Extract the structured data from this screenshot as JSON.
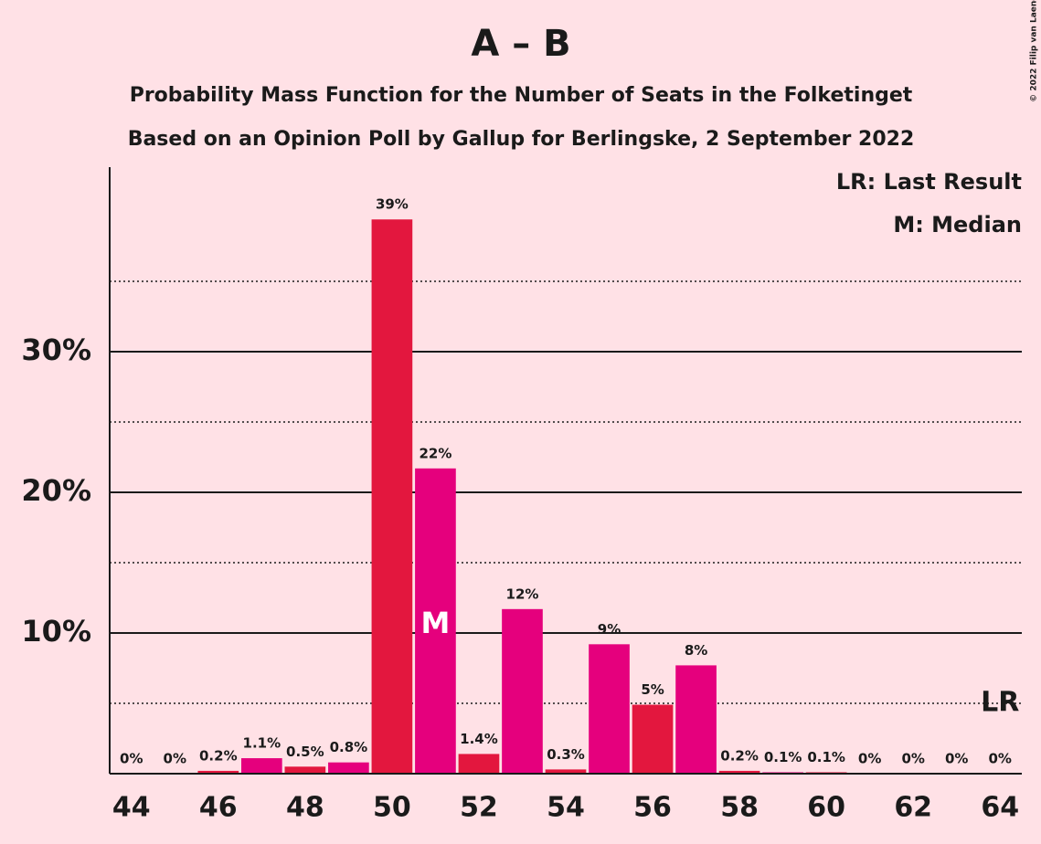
{
  "chart_data": {
    "type": "bar",
    "title": "A – B",
    "subtitle": "Probability Mass Function for the Number of Seats in the Folketinget",
    "subtitle2": "Based on an Opinion Poll by Gallup for Berlingske, 2 September 2022",
    "copyright": "© 2022 Filip van Laenen",
    "legend": [
      "LR: Last Result",
      "M: Median"
    ],
    "x": [
      44,
      45,
      46,
      47,
      48,
      49,
      50,
      51,
      52,
      53,
      54,
      55,
      56,
      57,
      58,
      59,
      60,
      61,
      62,
      63,
      64
    ],
    "values": [
      0,
      0,
      0.2,
      1.1,
      0.5,
      0.8,
      39.4,
      21.7,
      1.4,
      11.7,
      0.3,
      9.2,
      4.9,
      7.7,
      0.2,
      0.1,
      0.1,
      0,
      0,
      0,
      0
    ],
    "value_labels": [
      "0%",
      "0%",
      "0.2%",
      "1.1%",
      "0.5%",
      "0.8%",
      "39%",
      "22%",
      "1.4%",
      "12%",
      "0.3%",
      "9%",
      "5%",
      "8%",
      "0.2%",
      "0.1%",
      "0.1%",
      "0%",
      "0%",
      "0%",
      "0%"
    ],
    "colors": [
      "#e3173e",
      "#e5007d"
    ],
    "xlim": [
      43.5,
      64.5
    ],
    "xticks": [
      44,
      46,
      48,
      50,
      52,
      54,
      56,
      58,
      60,
      62,
      64
    ],
    "ylim": [
      0,
      43
    ],
    "yticks": [
      {
        "value": 10,
        "label": "10%"
      },
      {
        "value": 20,
        "label": "20%"
      },
      {
        "value": 30,
        "label": "30%"
      }
    ],
    "minor_yticks": [
      5,
      15,
      25,
      35
    ],
    "median": {
      "label": "M",
      "seat": 51
    },
    "last_result": {
      "label": "LR",
      "seat": 64
    }
  }
}
